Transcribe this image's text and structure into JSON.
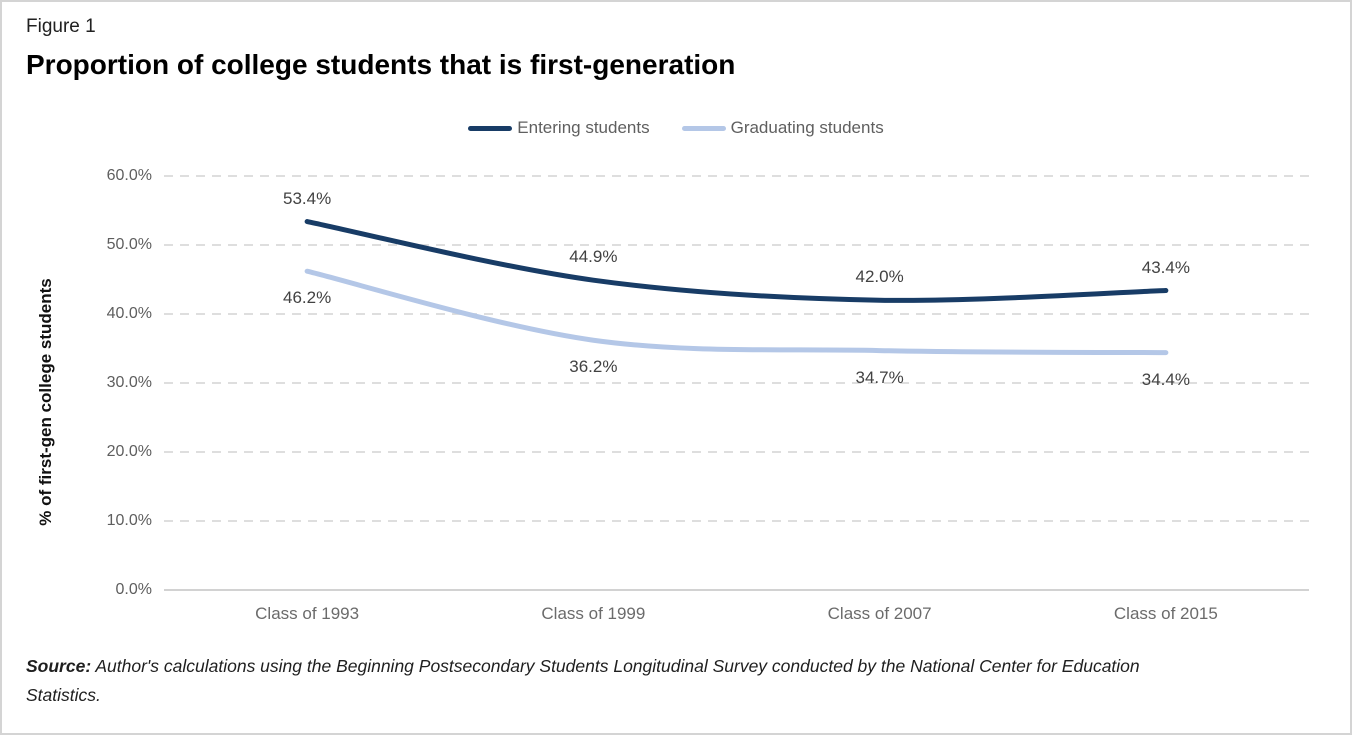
{
  "figure_label": "Figure 1",
  "title": "Proportion of college students that is first-generation",
  "source": {
    "prefix": "Source:",
    "text": " Author's calculations using the Beginning Postsecondary Students Longitudinal Survey conducted by the National Center for Education Statistics."
  },
  "chart_data": {
    "type": "line",
    "title": "Proportion of college students that is first-generation",
    "categories": [
      "Class of 1993",
      "Class of 1999",
      "Class of 2007",
      "Class of 2015"
    ],
    "series": [
      {
        "name": "Entering students",
        "color": "#183C66",
        "values": [
          53.4,
          44.9,
          42.0,
          43.4
        ],
        "data_label_position": "above"
      },
      {
        "name": "Graduating students",
        "color": "#B4C7E7",
        "values": [
          46.2,
          36.2,
          34.7,
          34.4
        ],
        "data_label_position": "below"
      }
    ],
    "data_labels": [
      [
        "53.4%",
        "44.9%",
        "42.0%",
        "43.4%"
      ],
      [
        "46.2%",
        "36.2%",
        "34.7%",
        "34.4%"
      ]
    ],
    "xlabel": "",
    "ylabel": "% of first-gen college students",
    "yticks": [
      "60.0%",
      "50.0%",
      "40.0%",
      "30.0%",
      "20.0%",
      "10.0%",
      "0.0%"
    ],
    "ytick_values": [
      60,
      50,
      40,
      30,
      20,
      10,
      0
    ],
    "ylim": [
      0,
      60
    ],
    "grid": "horizontal-dashed",
    "gridline_color": "#d9d9d9",
    "axis_line_color": "#d2d2d2",
    "legend_position": "top-center"
  }
}
